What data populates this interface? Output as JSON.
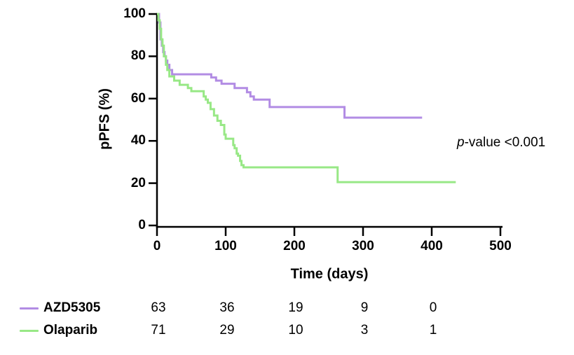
{
  "chart_data": {
    "type": "line",
    "subtype": "kaplan-meier-step",
    "title": "",
    "xlabel": "Time (days)",
    "ylabel": "pPFS (%)",
    "xlim": [
      0,
      500
    ],
    "ylim": [
      0,
      100
    ],
    "xticks": [
      0,
      100,
      200,
      300,
      400,
      500
    ],
    "yticks": [
      0,
      20,
      40,
      60,
      80,
      100
    ],
    "grid": false,
    "legend_position": "bottom-left",
    "annotation": "p-value <0.001",
    "axis_color": "#000000",
    "series": [
      {
        "name": "AZD5305",
        "color": "#b28ce4",
        "steps": [
          [
            0,
            100
          ],
          [
            3,
            96
          ],
          [
            5,
            88
          ],
          [
            7,
            85
          ],
          [
            9,
            82
          ],
          [
            11,
            80
          ],
          [
            13,
            78
          ],
          [
            15,
            76
          ],
          [
            18,
            73.5
          ],
          [
            22,
            71.5
          ],
          [
            79,
            70
          ],
          [
            86,
            68.5
          ],
          [
            94,
            67
          ],
          [
            113,
            65
          ],
          [
            131,
            63
          ],
          [
            136,
            61
          ],
          [
            141,
            59.5
          ],
          [
            164,
            56
          ],
          [
            273,
            51
          ],
          [
            386,
            51
          ]
        ]
      },
      {
        "name": "Olaparib",
        "color": "#98e886",
        "steps": [
          [
            0,
            100
          ],
          [
            2,
            97
          ],
          [
            4,
            93
          ],
          [
            6,
            88
          ],
          [
            8,
            85
          ],
          [
            10,
            80
          ],
          [
            13,
            76
          ],
          [
            15,
            73.5
          ],
          [
            18,
            70.5
          ],
          [
            25,
            68.5
          ],
          [
            33,
            66.5
          ],
          [
            45,
            65
          ],
          [
            50,
            63.5
          ],
          [
            68,
            61
          ],
          [
            71,
            59.5
          ],
          [
            74,
            58
          ],
          [
            78,
            55
          ],
          [
            83,
            52
          ],
          [
            88,
            49.5
          ],
          [
            93,
            47.5
          ],
          [
            98,
            43
          ],
          [
            100,
            41
          ],
          [
            111,
            38
          ],
          [
            113,
            36.5
          ],
          [
            116,
            34
          ],
          [
            118,
            33
          ],
          [
            121,
            30.5
          ],
          [
            123,
            28.5
          ],
          [
            126,
            27.5
          ],
          [
            263,
            20.5
          ],
          [
            435,
            20.5
          ]
        ]
      }
    ],
    "risk_table": {
      "times": [
        0,
        100,
        200,
        300,
        400
      ],
      "rows": [
        {
          "name": "AZD5305",
          "color": "#b28ce4",
          "counts": [
            "63",
            "36",
            "19",
            "9",
            "0"
          ]
        },
        {
          "name": "Olaparib",
          "color": "#98e886",
          "counts": [
            "71",
            "29",
            "10",
            "3",
            "1"
          ]
        }
      ]
    }
  },
  "annotation": {
    "p_italic": "p",
    "p_rest": "-value <0.001"
  }
}
